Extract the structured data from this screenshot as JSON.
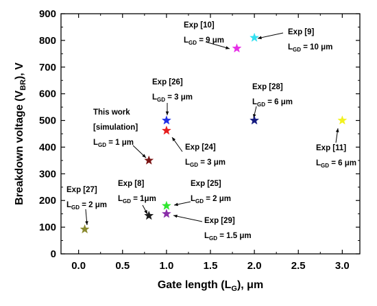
{
  "chart_data": {
    "type": "scatter",
    "xlabel": "Gate length (L",
    "xlabel_sub": "G",
    "xlabel_suffix": "), μm",
    "ylabel": "Breakdown voltage (V",
    "ylabel_sub": "BR",
    "ylabel_suffix": "), V",
    "xlim": [
      -0.2,
      3.2
    ],
    "ylim": [
      0,
      900
    ],
    "xticks": [
      "0.0",
      "0.5",
      "1.0",
      "1.5",
      "2.0",
      "2.5",
      "3.0"
    ],
    "xtick_values": [
      0.0,
      0.5,
      1.0,
      1.5,
      2.0,
      2.5,
      3.0
    ],
    "yticks": [
      "0",
      "100",
      "200",
      "300",
      "400",
      "500",
      "600",
      "700",
      "800",
      "900"
    ],
    "ytick_values": [
      0,
      100,
      200,
      300,
      400,
      500,
      600,
      700,
      800,
      900
    ],
    "marker": "star",
    "points": [
      {
        "id": "exp10",
        "x": 1.8,
        "y": 770,
        "color": "#e62ee6",
        "label_lines": [
          "Exp [10]",
          "L_GD = 9 μm"
        ],
        "label_color": "#000000"
      },
      {
        "id": "exp9",
        "x": 2.0,
        "y": 810,
        "color": "#33e0f0",
        "label_lines": [
          "Exp [9]",
          "L_GD = 10 μm"
        ],
        "label_color": "#000000"
      },
      {
        "id": "exp26",
        "x": 1.0,
        "y": 500,
        "color": "#1f2ee6",
        "label_lines": [
          "Exp [26]",
          "L_GD = 3 μm"
        ],
        "label_color": "#000000"
      },
      {
        "id": "exp28",
        "x": 2.0,
        "y": 500,
        "color": "#141a80",
        "label_lines": [
          "Exp [28]",
          "L_GD = 6 μm"
        ],
        "label_color": "#000000"
      },
      {
        "id": "exp24",
        "x": 1.0,
        "y": 462,
        "color": "#e61e1e",
        "label_lines": [
          "Exp [24]",
          "L_GD = 3 μm"
        ],
        "label_color": "#000000"
      },
      {
        "id": "thiswork",
        "x": 0.8,
        "y": 350,
        "color": "#7a1414",
        "label_lines": [
          "This work",
          "[simulation]",
          "L_GD = 1 μm"
        ],
        "label_color": "#d81e1e"
      },
      {
        "id": "exp11",
        "x": 3.0,
        "y": 500,
        "color": "#f2f21e",
        "label_lines": [
          "Exp [11]",
          "L_GD = 6 μm"
        ],
        "label_color": "#000000"
      },
      {
        "id": "exp8",
        "x": 0.8,
        "y": 143,
        "color": "#1a1a1a",
        "label_lines": [
          "Exp [8]",
          "L_GD = 1μm"
        ],
        "label_color": "#000000"
      },
      {
        "id": "exp25",
        "x": 1.0,
        "y": 180,
        "color": "#2ee62e",
        "label_lines": [
          "Exp [25]",
          "L_GD = 2 μm"
        ],
        "label_color": "#000000"
      },
      {
        "id": "exp29",
        "x": 1.0,
        "y": 150,
        "color": "#8a2ea8",
        "label_lines": [
          "Exp [29]",
          "L_GD = 1.5 μm"
        ],
        "label_color": "#000000"
      },
      {
        "id": "exp27",
        "x": 0.07,
        "y": 92,
        "color": "#8a8a2e",
        "label_lines": [
          "Exp [27]",
          "L_GD = 2 μm"
        ],
        "label_color": "#000000"
      }
    ]
  }
}
